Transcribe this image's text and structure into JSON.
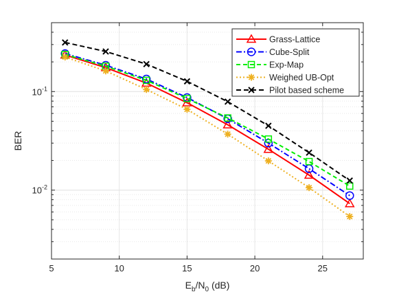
{
  "chart_data": {
    "type": "line",
    "xlabel_main": "E",
    "xlabel_sub1": "b",
    "xlabel_mid": "/N",
    "xlabel_sub2": "0",
    "xlabel_tail": " (dB)",
    "ylabel": "BER",
    "xlim": [
      5,
      28
    ],
    "ylim": [
      0.002,
      0.5
    ],
    "yscale": "log",
    "grid": true,
    "legend_position": "top-right",
    "x_ticks": [
      5,
      10,
      15,
      20,
      25
    ],
    "x_tick_labels": [
      "5",
      "10",
      "15",
      "20",
      "25"
    ],
    "y_ticks": [
      0.1,
      0.01
    ],
    "y_tick_labels": [
      {
        "base": "10",
        "exp": "-1"
      },
      {
        "base": "10",
        "exp": "-2"
      }
    ],
    "x": [
      6,
      9,
      12,
      15,
      18,
      21,
      24,
      27
    ],
    "series": [
      {
        "name": "Grass-Lattice",
        "color": "#ff0000",
        "dash": "",
        "marker": "triangle",
        "values": [
          0.235,
          0.175,
          0.122,
          0.077,
          0.046,
          0.026,
          0.0142,
          0.0073
        ]
      },
      {
        "name": "Cube-Split",
        "color": "#0000ff",
        "dash": "8,3,2,3",
        "marker": "circle",
        "values": [
          0.243,
          0.185,
          0.134,
          0.087,
          0.053,
          0.03,
          0.0165,
          0.0088
        ]
      },
      {
        "name": "Exp-Map",
        "color": "#00ee00",
        "dash": "6,4",
        "marker": "square",
        "values": [
          0.238,
          0.181,
          0.13,
          0.085,
          0.054,
          0.033,
          0.0195,
          0.011
        ]
      },
      {
        "name": "Weighed UB-Opt",
        "color": "#eeb020",
        "dash": "2,3",
        "marker": "asterisk",
        "values": [
          0.224,
          0.162,
          0.105,
          0.066,
          0.037,
          0.0198,
          0.0106,
          0.0054
        ]
      },
      {
        "name": "Pilot based scheme",
        "color": "#000000",
        "dash": "7,4",
        "marker": "x",
        "values": [
          0.315,
          0.255,
          0.19,
          0.127,
          0.079,
          0.045,
          0.024,
          0.0125
        ]
      }
    ]
  }
}
